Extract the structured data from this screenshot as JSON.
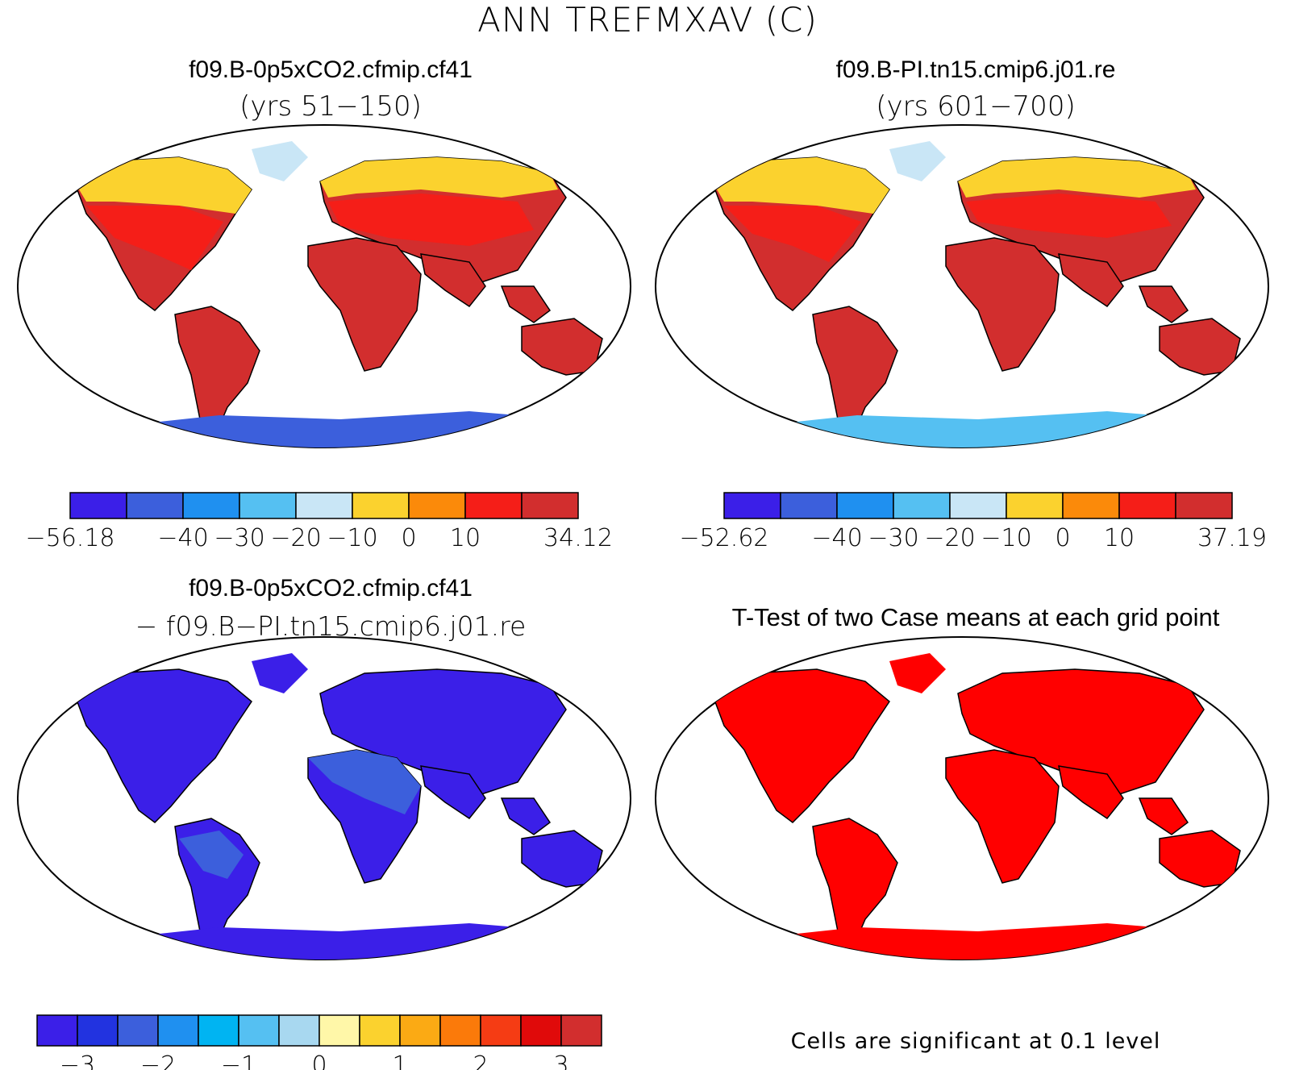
{
  "title": "ANN TREFMXAV (C)",
  "panels": {
    "top_left": {
      "title": "f09.B-0p5xCO2.cfmip.cf41",
      "subtitle": "(yrs 51−150)"
    },
    "top_right": {
      "title": "f09.B-PI.tn15.cmip6.j01.re",
      "subtitle": "(yrs 601−700)"
    },
    "bottom_left": {
      "title": "f09.B-0p5xCO2.cfmip.cf41",
      "subtitle": "− f09.B−PI.tn15.cmip6.j01.re"
    },
    "bottom_right": {
      "title": "T-Test of two Case means at each grid point",
      "note": "Cells are significant at 0.1 level"
    }
  },
  "colorbars": {
    "top_left": {
      "colors": [
        "#3b1fe8",
        "#3c5fdc",
        "#1f90f0",
        "#55c0f2",
        "#c9e6f6",
        "#fbd22e",
        "#fb8a0a",
        "#f51e18",
        "#d22e2e"
      ],
      "labels": [
        "−56.18",
        "−40",
        "−30",
        "−20",
        "−10",
        "0",
        "10",
        "34.12"
      ]
    },
    "top_right": {
      "colors": [
        "#3b1fe8",
        "#3c5fdc",
        "#1f90f0",
        "#55c0f2",
        "#c9e6f6",
        "#fbd22e",
        "#fb8a0a",
        "#f51e18",
        "#d22e2e"
      ],
      "labels": [
        "−52.62",
        "−40",
        "−30",
        "−20",
        "−10",
        "0",
        "10",
        "37.19"
      ]
    },
    "bottom_left": {
      "colors": [
        "#3b1fe8",
        "#2233e0",
        "#3c5fdc",
        "#1f90f0",
        "#00b4f2",
        "#55c0f2",
        "#a8d8f0",
        "#fff7a8",
        "#fbd22e",
        "#fbaa14",
        "#fb7a0a",
        "#f53c14",
        "#e00a0a",
        "#d22e2e"
      ],
      "labels": [
        "−3",
        "−2",
        "−1",
        "0",
        "1",
        "2",
        "3"
      ]
    }
  },
  "map_fills": {
    "top_left": {
      "land": "#d22e2e",
      "north": "#fbd22e",
      "mid": "#f51e18",
      "greenland": "#c9e6f6",
      "antarctica": "#3c5fdc"
    },
    "top_right": {
      "land": "#d22e2e",
      "north": "#fbd22e",
      "mid": "#f51e18",
      "greenland": "#c9e6f6",
      "antarctica": "#55c0f2"
    },
    "bottom_left": {
      "land": "#3b1fe8",
      "north": "#3b1fe8",
      "mid": "#3c5fdc",
      "greenland": "#3b1fe8",
      "antarctica": "#3b1fe8"
    },
    "bottom_right": {
      "land": "#ff0000",
      "north": "#ff0000",
      "mid": "#ff0000",
      "greenland": "#ff0000",
      "antarctica": "#ff0000"
    }
  }
}
